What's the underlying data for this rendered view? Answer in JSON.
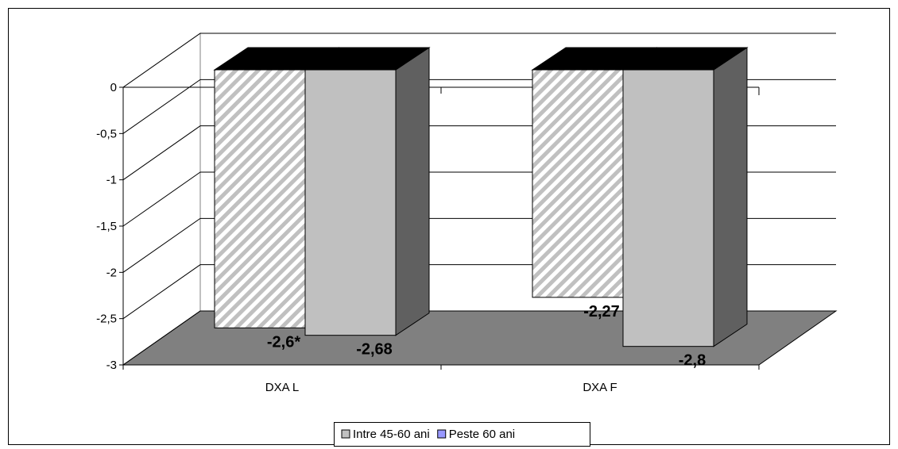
{
  "chart_data": {
    "type": "bar",
    "style": "3d-clustered-column",
    "categories": [
      "DXA L",
      "DXA F"
    ],
    "series": [
      {
        "name": "Intre 45-60 ani",
        "values": [
          -2.6,
          -2.27
        ],
        "data_labels": [
          "-2,6*",
          "-2,27"
        ],
        "pattern": "diagonal-hatch",
        "color": "#c0c0c0"
      },
      {
        "name": "Peste 60 ani",
        "values": [
          -2.68,
          -2.8
        ],
        "data_labels": [
          "-2,68",
          "-2,8"
        ],
        "color": "#c0c0c0",
        "legend_color": "#9999ff"
      }
    ],
    "yticks": [
      0,
      -0.5,
      -1,
      -1.5,
      -2,
      -2.5,
      -3
    ],
    "ytick_labels": [
      "0",
      "-0,5",
      "-1",
      "-1,5",
      "-2",
      "-2,5",
      "-3"
    ],
    "ylim": [
      -3,
      0
    ],
    "grid": true,
    "legend_position": "bottom",
    "colors": {
      "floor": "#808080",
      "bar_top": "#000000",
      "bar_side": "#606060",
      "bar_front": "#c0c0c0"
    }
  }
}
